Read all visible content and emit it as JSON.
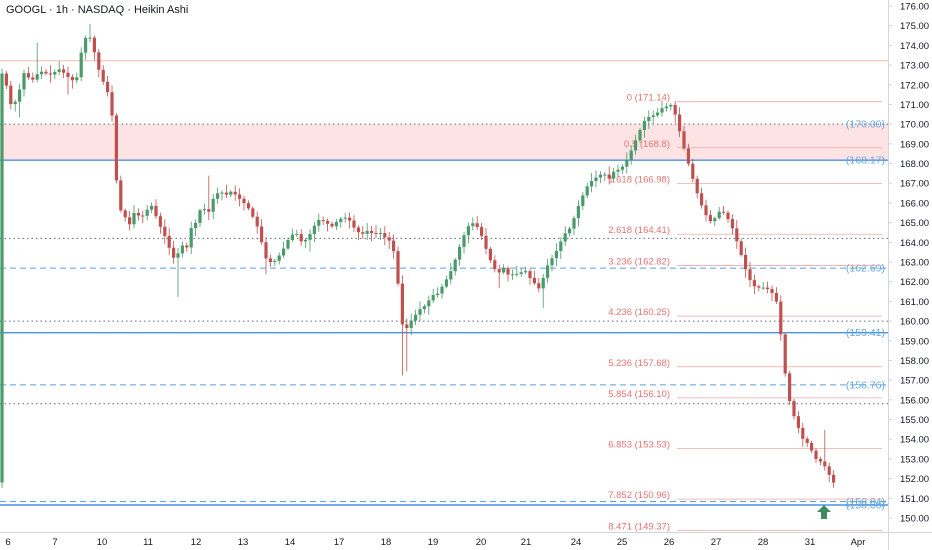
{
  "header": {
    "title": "GOOGL · 1h · NASDAQ · Heikin Ashi"
  },
  "chart_data": {
    "type": "candlestick",
    "style": "Heikin Ashi",
    "symbol": "GOOGL",
    "interval": "1h",
    "exchange": "NASDAQ",
    "ylim": [
      149.6,
      176.2
    ],
    "y_ticks": [
      "150.00",
      "151.00",
      "152.00",
      "153.00",
      "154.00",
      "155.00",
      "156.00",
      "157.00",
      "158.00",
      "159.00",
      "160.00",
      "161.00",
      "162.00",
      "163.00",
      "164.00",
      "165.00",
      "166.00",
      "167.00",
      "168.00",
      "169.00",
      "170.00",
      "171.00",
      "172.00",
      "173.00",
      "174.00",
      "175.00",
      "176.00"
    ],
    "x_ticks": [
      "6",
      "7",
      "10",
      "11",
      "12",
      "13",
      "14",
      "17",
      "18",
      "19",
      "20",
      "21",
      "24",
      "25",
      "26",
      "27",
      "28",
      "31",
      "Apr"
    ],
    "colors": {
      "up": "#4a9a6a",
      "down": "#c0504d",
      "fib": "#e57373",
      "zone_blue": "#4a90e2",
      "zone_fill": "#fde3e3",
      "arrow": "#3d8b5e"
    },
    "fib_levels": [
      {
        "label": "0 (171.14)",
        "value": 171.14
      },
      {
        "label": "0.5 (168.8)",
        "value": 168.8
      },
      {
        "label": "1.618 (166.98)",
        "value": 166.98
      },
      {
        "label": "2.618 (164.41)",
        "value": 164.41
      },
      {
        "label": "3.236 (162.82)",
        "value": 162.82
      },
      {
        "label": "4.236 (160.25)",
        "value": 160.25
      },
      {
        "label": "5.236 (157.68)",
        "value": 157.68
      },
      {
        "label": "5.854 (156.10)",
        "value": 156.1
      },
      {
        "label": "6.853 (153.53)",
        "value": 153.53
      },
      {
        "label": "7.852 (150.96)",
        "value": 150.96
      },
      {
        "label": "8.471 (149.37)",
        "value": 149.37
      }
    ],
    "key_levels": [
      {
        "label": "(170.00)",
        "value": 170.0,
        "style": "dotted"
      },
      {
        "label": "(168.17)",
        "value": 168.17,
        "style": "solid"
      },
      {
        "label": "",
        "value": 164.2,
        "style": "dotted"
      },
      {
        "label": "(162.69)",
        "value": 162.69,
        "style": "dashed"
      },
      {
        "label": "(159.41)",
        "value": 159.41,
        "style": "solid"
      },
      {
        "label": "",
        "value": 160.0,
        "style": "dotted"
      },
      {
        "label": "(156.76)",
        "value": 156.76,
        "style": "dashed"
      },
      {
        "label": "",
        "value": 155.8,
        "style": "dotted"
      },
      {
        "label": "(150.84)",
        "value": 150.84,
        "style": "dashed"
      },
      {
        "label": "(150.66)",
        "value": 150.66,
        "style": "solid"
      }
    ],
    "resistance_zone": [
      168.17,
      170.0
    ],
    "top_line": 173.22,
    "path": [
      [
        0,
        172.9
      ],
      [
        4,
        172.6
      ],
      [
        9,
        171.9
      ],
      [
        14,
        170.8
      ],
      [
        20,
        171.4
      ],
      [
        26,
        172.6
      ],
      [
        34,
        172.2
      ],
      [
        42,
        172.7
      ],
      [
        52,
        172.5
      ],
      [
        62,
        172.8
      ],
      [
        70,
        172.4
      ],
      [
        78,
        172.1
      ],
      [
        84,
        173.8
      ],
      [
        90,
        174.7
      ],
      [
        95,
        174.0
      ],
      [
        100,
        172.9
      ],
      [
        105,
        172.2
      ],
      [
        110,
        171.6
      ],
      [
        114,
        170.6
      ],
      [
        118,
        167.4
      ],
      [
        122,
        165.7
      ],
      [
        127,
        165.3
      ],
      [
        132,
        164.9
      ],
      [
        137,
        165.6
      ],
      [
        143,
        165.2
      ],
      [
        150,
        165.7
      ],
      [
        155,
        165.9
      ],
      [
        160,
        165.0
      ],
      [
        165,
        164.6
      ],
      [
        170,
        163.9
      ],
      [
        174,
        163.4
      ],
      [
        178,
        163.0
      ],
      [
        183,
        164.0
      ],
      [
        188,
        163.5
      ],
      [
        193,
        164.7
      ],
      [
        198,
        165.0
      ],
      [
        204,
        165.9
      ],
      [
        210,
        165.4
      ],
      [
        216,
        166.3
      ],
      [
        222,
        166.6
      ],
      [
        228,
        166.4
      ],
      [
        234,
        166.6
      ],
      [
        240,
        166.3
      ],
      [
        246,
        166.0
      ],
      [
        251,
        165.7
      ],
      [
        256,
        165.2
      ],
      [
        262,
        164.5
      ],
      [
        266,
        163.4
      ],
      [
        270,
        163.0
      ],
      [
        276,
        163.0
      ],
      [
        281,
        163.3
      ],
      [
        286,
        163.7
      ],
      [
        292,
        164.3
      ],
      [
        298,
        164.5
      ],
      [
        304,
        164.0
      ],
      [
        310,
        164.2
      ],
      [
        316,
        164.8
      ],
      [
        322,
        165.2
      ],
      [
        328,
        165.0
      ],
      [
        334,
        164.8
      ],
      [
        340,
        165.1
      ],
      [
        346,
        165.3
      ],
      [
        352,
        165.1
      ],
      [
        358,
        164.6
      ],
      [
        364,
        164.4
      ],
      [
        370,
        164.6
      ],
      [
        376,
        164.4
      ],
      [
        382,
        164.5
      ],
      [
        388,
        164.2
      ],
      [
        394,
        164.0
      ],
      [
        398,
        163.0
      ],
      [
        402,
        161.0
      ],
      [
        406,
        159.2
      ],
      [
        410,
        159.8
      ],
      [
        416,
        160.2
      ],
      [
        422,
        160.6
      ],
      [
        428,
        160.8
      ],
      [
        434,
        161.3
      ],
      [
        440,
        161.4
      ],
      [
        446,
        161.9
      ],
      [
        452,
        162.4
      ],
      [
        458,
        163.2
      ],
      [
        464,
        164.1
      ],
      [
        470,
        164.8
      ],
      [
        476,
        165.0
      ],
      [
        482,
        164.6
      ],
      [
        486,
        164.0
      ],
      [
        490,
        163.4
      ],
      [
        495,
        162.8
      ],
      [
        500,
        162.4
      ],
      [
        506,
        162.7
      ],
      [
        511,
        162.3
      ],
      [
        516,
        162.4
      ],
      [
        521,
        162.4
      ],
      [
        527,
        162.6
      ],
      [
        532,
        162.2
      ],
      [
        537,
        161.9
      ],
      [
        542,
        161.6
      ],
      [
        546,
        162.3
      ],
      [
        551,
        163.0
      ],
      [
        556,
        163.3
      ],
      [
        561,
        163.8
      ],
      [
        566,
        164.4
      ],
      [
        571,
        164.6
      ],
      [
        576,
        165.2
      ],
      [
        581,
        165.9
      ],
      [
        586,
        166.5
      ],
      [
        591,
        167.0
      ],
      [
        596,
        167.2
      ],
      [
        601,
        167.4
      ],
      [
        606,
        167.5
      ],
      [
        611,
        167.2
      ],
      [
        616,
        167.6
      ],
      [
        621,
        167.7
      ],
      [
        626,
        167.9
      ],
      [
        632,
        168.5
      ],
      [
        638,
        169.2
      ],
      [
        643,
        169.8
      ],
      [
        648,
        170.3
      ],
      [
        653,
        170.4
      ],
      [
        658,
        170.5
      ],
      [
        662,
        170.7
      ],
      [
        666,
        170.9
      ],
      [
        670,
        170.9
      ],
      [
        674,
        171.0
      ],
      [
        678,
        170.4
      ],
      [
        682,
        169.6
      ],
      [
        686,
        168.8
      ],
      [
        690,
        168.1
      ],
      [
        694,
        167.4
      ],
      [
        698,
        166.7
      ],
      [
        702,
        166.1
      ],
      [
        706,
        165.6
      ],
      [
        710,
        165.2
      ],
      [
        714,
        165.0
      ],
      [
        718,
        165.3
      ],
      [
        722,
        165.6
      ],
      [
        726,
        165.5
      ],
      [
        730,
        165.2
      ],
      [
        734,
        164.8
      ],
      [
        738,
        164.2
      ],
      [
        742,
        163.6
      ],
      [
        746,
        162.9
      ],
      [
        750,
        162.3
      ],
      [
        754,
        161.9
      ],
      [
        758,
        161.7
      ],
      [
        763,
        161.7
      ],
      [
        768,
        161.7
      ],
      [
        773,
        161.5
      ],
      [
        778,
        161.2
      ],
      [
        782,
        159.8
      ],
      [
        786,
        157.9
      ],
      [
        790,
        156.3
      ],
      [
        794,
        155.5
      ],
      [
        798,
        154.9
      ],
      [
        802,
        154.4
      ],
      [
        806,
        153.9
      ],
      [
        810,
        153.8
      ],
      [
        814,
        153.4
      ],
      [
        818,
        153.0
      ],
      [
        822,
        152.9
      ],
      [
        826,
        152.7
      ],
      [
        830,
        152.4
      ],
      [
        834,
        151.8
      ]
    ]
  }
}
